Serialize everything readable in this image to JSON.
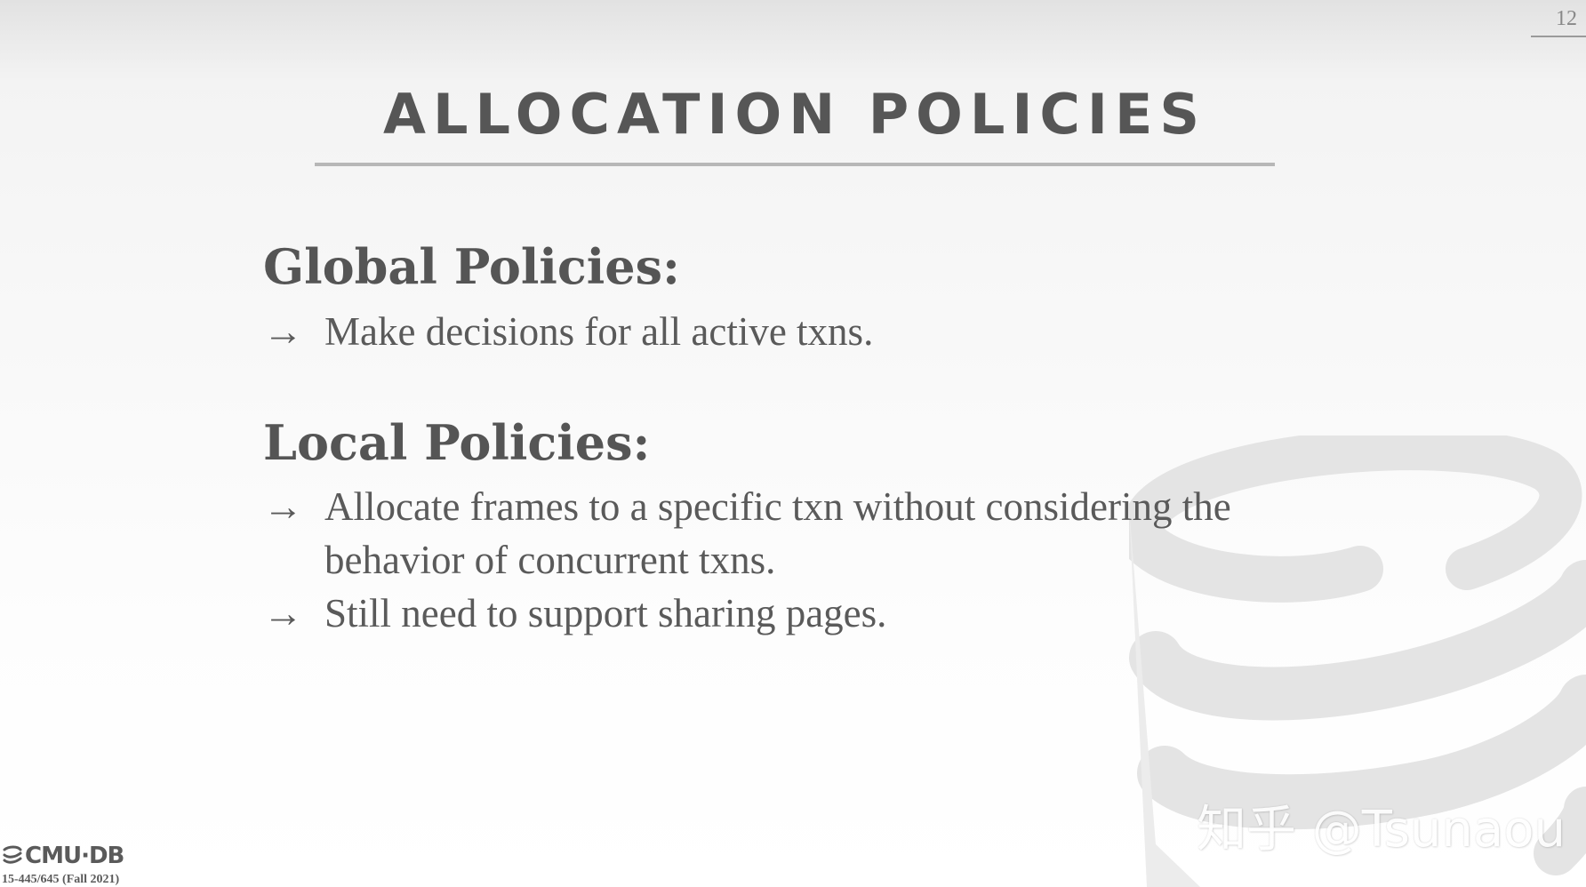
{
  "slide": {
    "number": "12",
    "title": "ALLOCATION POLICIES"
  },
  "sections": [
    {
      "heading": "Global Policies:",
      "bullets": [
        {
          "arrow": "→",
          "text": "Make decisions for all active txns."
        }
      ]
    },
    {
      "heading": "Local Policies:",
      "bullets": [
        {
          "arrow": "→",
          "text": "Allocate frames to a specific txn without considering the behavior of concurrent txns."
        },
        {
          "arrow": "→",
          "text": "Still need to support sharing pages."
        }
      ]
    }
  ],
  "footer": {
    "logo_text": "CMU·DB",
    "course": "15-445/645 (Fall 2021)"
  },
  "watermark": {
    "text": "知乎 @Tsunaou"
  },
  "icons": [
    "database-logo-icon",
    "database-watermark-icon"
  ],
  "colors": {
    "text": "#555555",
    "rule": "#b7b7b7",
    "watermark_shape": "#e6e6e6"
  }
}
